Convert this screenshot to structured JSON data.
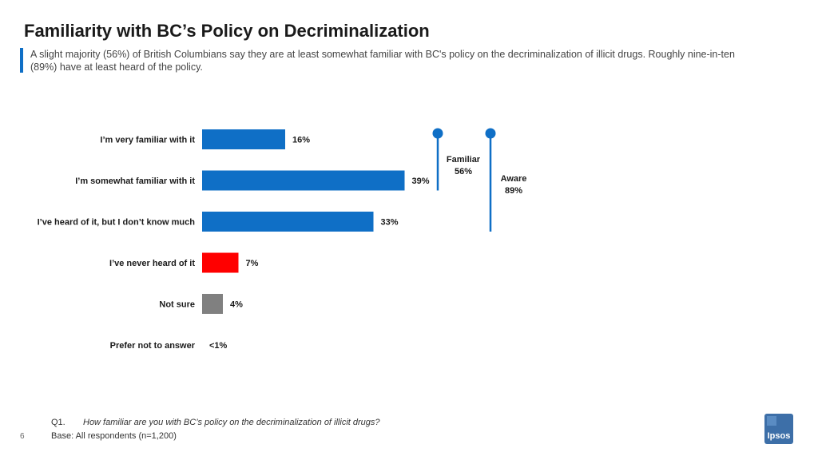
{
  "header": {
    "title": "Familiarity with BC’s Policy on Decriminalization",
    "subtitle": "A slight majority (56%) of British Columbians say they are at least somewhat familiar with BC's policy on the decriminalization of illicit drugs. Roughly nine-in-ten (89%) have at least heard of the policy."
  },
  "chart_data": {
    "type": "bar",
    "orientation": "horizontal",
    "categories": [
      "I’m very familiar with it",
      "I’m somewhat familiar with it",
      "I’ve heard of it, but I don’t know much",
      "I’ve never heard of it",
      "Not sure",
      "Prefer not to answer"
    ],
    "values": [
      16,
      39,
      33,
      7,
      4,
      0.4
    ],
    "value_labels": [
      "16%",
      "39%",
      "33%",
      "7%",
      "4%",
      "<1%"
    ],
    "colors": [
      "#0f6fc6",
      "#0f6fc6",
      "#0f6fc6",
      "#ff0000",
      "#808080",
      "#808080"
    ],
    "xlim": [
      0,
      100
    ],
    "brackets": [
      {
        "label": "Familiar",
        "value_label": "56%",
        "from_category": 0,
        "to_category": 1
      },
      {
        "label": "Aware",
        "value_label": "89%",
        "from_category": 0,
        "to_category": 2
      }
    ],
    "bracket_color": "#0f6fc6"
  },
  "footer": {
    "question_number": "Q1.",
    "question_text": "How familiar are you with BC’s policy on the decriminalization of illicit drugs?",
    "base": "Base: All respondents (n=1,200)",
    "page_number": "6"
  },
  "logo": {
    "text": "Ipsos"
  }
}
